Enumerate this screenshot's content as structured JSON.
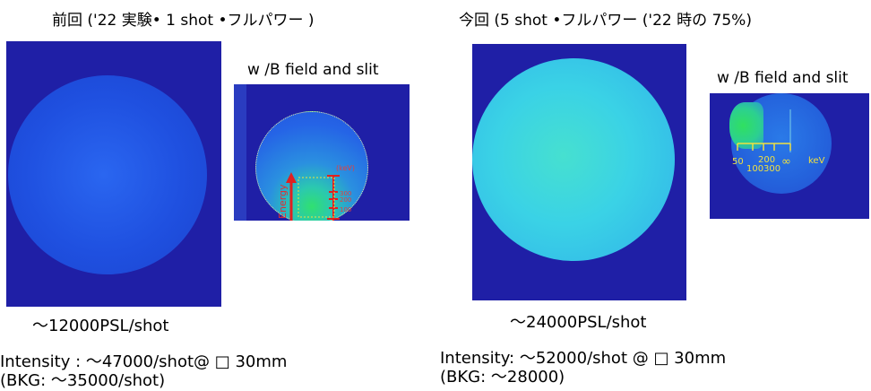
{
  "left": {
    "title": "前回 ('22 実験• 1 shot •フルパワー )",
    "inset_title": "w /B field and slit",
    "psl": "～12000PSL/shot",
    "intensity": "Intensity : ～47000/shot@ □ 30mm",
    "bkg": "(BKG: ～35000/shot)",
    "inset_axis": {
      "unit": "(keV)",
      "ticks": [
        "300",
        "200",
        "100",
        "50"
      ],
      "energy_label": "Energy"
    }
  },
  "right": {
    "title": "今回 (5 shot  •フルパワー ('22 時の 75%)",
    "inset_title": "w /B field and slit",
    "psl": "～24000PSL/shot",
    "intensity": "Intensity:  ～52000/shot @ □ 30mm",
    "bkg": " (BKG:  ～28000)",
    "inset_axis": {
      "ticks": [
        "50",
        "100",
        "200",
        "300",
        "∞"
      ],
      "unit": "keV"
    }
  },
  "colors": {
    "background_panel": "#1f1fa6",
    "left_disc": "#1f4fe0",
    "right_disc": "#36c8e8",
    "signal_green": "#2fe06a",
    "annotation_red": "#e02020",
    "annotation_yellow": "#f0e040"
  }
}
